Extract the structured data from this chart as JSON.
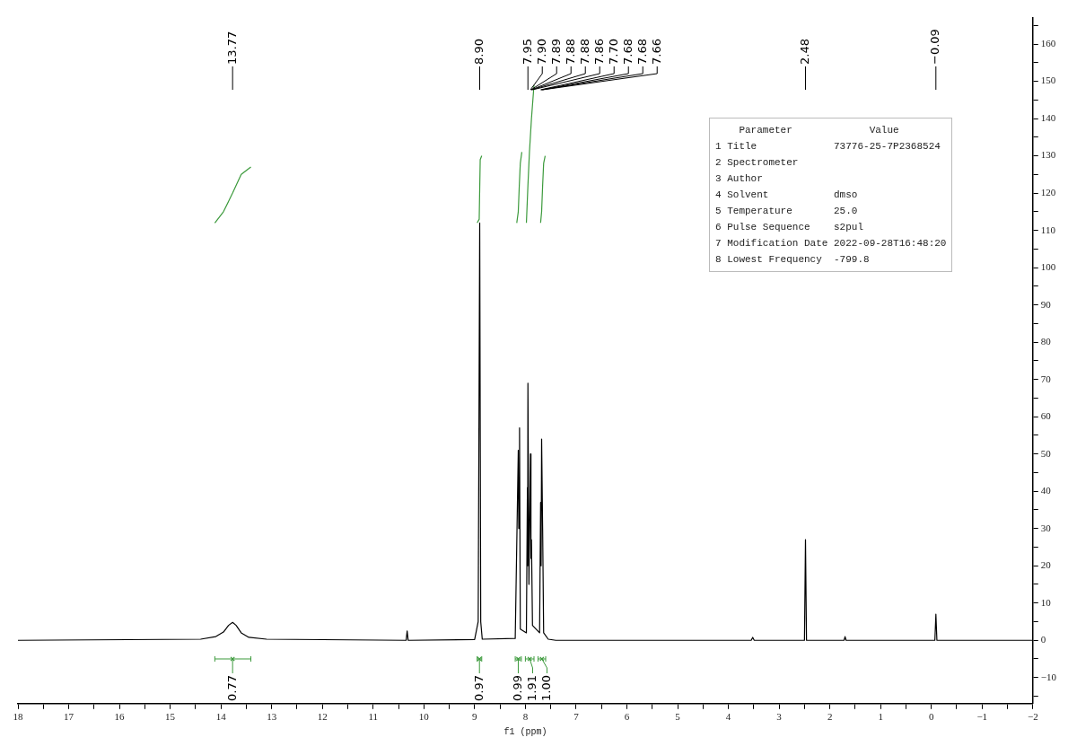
{
  "chart_data": {
    "type": "line",
    "xlabel": "f1 (ppm)",
    "xlim": [
      18,
      -2
    ],
    "xticks": [
      18,
      {
        "value": 17.5,
        "label": null
      },
      17,
      {
        "value": 16.5,
        "label": null
      },
      16,
      {
        "value": 15.5,
        "label": null
      },
      15,
      {
        "value": 14.5,
        "label": null
      },
      14,
      {
        "value": 13.5,
        "label": null
      },
      13,
      {
        "value": 12.5,
        "label": null
      },
      12,
      {
        "value": 11.5,
        "label": null
      },
      11,
      {
        "value": 10.5,
        "label": null
      },
      10,
      {
        "value": 9.5,
        "label": null
      },
      9,
      {
        "value": 8.5,
        "label": null
      },
      8,
      {
        "value": 7.5,
        "label": null
      },
      7,
      {
        "value": 6.5,
        "label": null
      },
      6,
      {
        "value": 5.5,
        "label": null
      },
      5,
      {
        "value": 4.5,
        "label": null
      },
      4,
      {
        "value": 3.5,
        "label": null
      },
      3,
      {
        "value": 2.5,
        "label": null
      },
      2,
      {
        "value": 1.5,
        "label": null
      },
      1,
      {
        "value": 0.5,
        "label": null
      },
      0,
      {
        "value": -0.5,
        "label": null
      },
      {
        "value": -1,
        "label": "−1"
      },
      {
        "value": -1.5,
        "label": null
      },
      {
        "value": -2,
        "label": "−2"
      }
    ],
    "ylim": [
      -17,
      167
    ],
    "yticks": [
      {
        "value": -15,
        "label": null
      },
      {
        "value": -10,
        "label": "−10"
      },
      {
        "value": -5,
        "label": null
      },
      0,
      {
        "value": 5,
        "label": null
      },
      10,
      {
        "value": 15,
        "label": null
      },
      20,
      {
        "value": 25,
        "label": null
      },
      30,
      {
        "value": 35,
        "label": null
      },
      40,
      {
        "value": 45,
        "label": null
      },
      50,
      {
        "value": 55,
        "label": null
      },
      60,
      {
        "value": 65,
        "label": null
      },
      70,
      {
        "value": 75,
        "label": null
      },
      80,
      {
        "value": 85,
        "label": null
      },
      90,
      {
        "value": 95,
        "label": null
      },
      100,
      {
        "value": 105,
        "label": null
      },
      110,
      {
        "value": 115,
        "label": null
      },
      120,
      {
        "value": 125,
        "label": null
      },
      130,
      {
        "value": 135,
        "label": null
      },
      140,
      {
        "value": 145,
        "label": null
      },
      150,
      {
        "value": 155,
        "label": null
      },
      160,
      {
        "value": 165,
        "label": null
      }
    ],
    "grid": false,
    "legend": false,
    "marker": "none",
    "line_style": "solid",
    "series": [
      {
        "color": "#000000",
        "x": [
          18,
          14.4,
          14.1,
          13.95,
          13.85,
          13.77,
          13.7,
          13.6,
          13.45,
          13.1,
          10.35,
          10.33,
          10.31,
          9.0,
          8.93,
          8.9,
          8.88,
          8.85,
          8.2,
          8.14,
          8.13,
          8.115,
          8.1,
          7.98,
          7.96,
          7.955,
          7.95,
          7.93,
          7.9,
          7.89,
          7.88,
          7.86,
          7.72,
          7.7,
          7.69,
          7.68,
          7.66,
          7.64,
          7.55,
          7.4,
          3.55,
          3.52,
          3.49,
          2.5,
          2.48,
          2.46,
          1.72,
          1.7,
          1.68,
          -0.07,
          -0.09,
          -0.11,
          -2
        ],
        "values": [
          0,
          0.3,
          1,
          2.2,
          4,
          4.8,
          4,
          2,
          0.8,
          0.3,
          0,
          2.5,
          0,
          0.2,
          5,
          112,
          5,
          0.3,
          0.5,
          51,
          30,
          57,
          3,
          2,
          41,
          20,
          69,
          15,
          50,
          22,
          27,
          4,
          2,
          37,
          20,
          54,
          30,
          2,
          0.3,
          0,
          0,
          0.8,
          0,
          0,
          27,
          0,
          0,
          1,
          0,
          0,
          7,
          0,
          0
        ]
      },
      {
        "color": "#3c9a3c",
        "x": [
          14.12,
          13.95,
          13.77,
          13.6,
          13.41
        ],
        "values": [
          112,
          115,
          120,
          125,
          127
        ]
      },
      {
        "color": "#3c9a3c",
        "x": [
          8.95,
          8.91,
          8.9,
          8.89,
          8.86
        ],
        "values": [
          112,
          113,
          121,
          129,
          130
        ]
      },
      {
        "color": "#3c9a3c",
        "x": [
          8.17,
          8.14,
          8.12,
          8.1,
          8.07
        ],
        "values": [
          112,
          115,
          122,
          128,
          131
        ]
      },
      {
        "color": "#3c9a3c",
        "x": [
          7.98,
          7.95,
          7.92,
          7.88,
          7.83
        ],
        "values": [
          112,
          122,
          131,
          140,
          149
        ]
      },
      {
        "color": "#3c9a3c",
        "x": [
          7.7,
          7.68,
          7.66,
          7.64,
          7.61
        ],
        "values": [
          112,
          115,
          122,
          128,
          130
        ]
      },
      {
        "type": "scatter",
        "marker": "cross",
        "color": "#3c9a3c",
        "x": [
          13.77,
          8.905,
          8.14,
          7.915,
          7.675
        ],
        "values": [
          -5,
          -5,
          -5,
          -5,
          -5
        ],
        "xerrors": [
          [
            13.41,
            14.12
          ],
          [
            8.86,
            8.95
          ],
          [
            8.08,
            8.2
          ],
          [
            7.83,
            8.0
          ],
          [
            7.6,
            7.75
          ]
        ]
      }
    ],
    "annotations": [
      {
        "text": "13.77",
        "x": 13.77
      },
      {
        "text": "8.90",
        "x": 8.9
      },
      {
        "text": "7.95",
        "x": 7.95
      },
      {
        "text": "7.90",
        "x": 7.9
      },
      {
        "text": "7.89",
        "x": 7.89
      },
      {
        "text": "7.88",
        "x": 7.88
      },
      {
        "text": "7.88",
        "x": 7.88
      },
      {
        "text": "7.86",
        "x": 7.86
      },
      {
        "text": "7.70",
        "x": 7.7
      },
      {
        "text": "7.68",
        "x": 7.68
      },
      {
        "text": "7.68",
        "x": 7.68
      },
      {
        "text": "7.66",
        "x": 7.66
      },
      {
        "text": "2.48",
        "x": 2.48
      },
      {
        "text": "−0.09",
        "x": -0.09
      },
      {
        "text": "0.77",
        "x": 13.77,
        "y": -5
      },
      {
        "text": "0.97",
        "x": 8.905,
        "y": -5
      },
      {
        "text": "0.99",
        "x": 8.14,
        "y": -5
      },
      {
        "text": "1.91",
        "x": 7.915,
        "y": -5
      },
      {
        "text": "1.00",
        "x": 7.675,
        "y": -5
      },
      "    Parameter             Value",
      "1 Title             73776-25-7P2368524",
      "2 Spectrometer",
      "3 Author",
      "4 Solvent           dmso",
      "5 Temperature       25.0",
      "6 Pulse Sequence    s2pul",
      "7 Modification Date 2022-09-28T16:48:20",
      "8 Lowest Frequency  -799.8"
    ]
  }
}
